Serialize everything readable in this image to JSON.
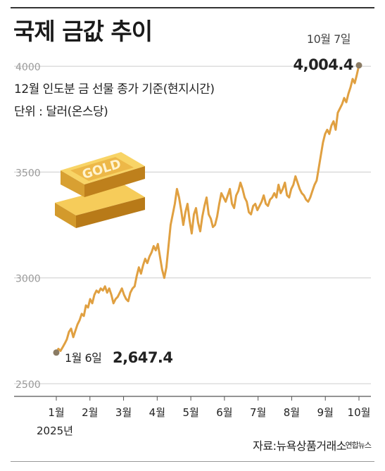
{
  "header": {
    "title": "국제 금값 추이",
    "subtitle": "12월 인도분 금 선물 종가 기준(현지시간)",
    "unit": "단위 : 달러(온스당)"
  },
  "footer": {
    "source": "자료:뉴욕상품거래소",
    "credit": "연합뉴스"
  },
  "colors": {
    "line": "#E0A041",
    "grid": "#cccccc",
    "gold_bar_top": "#F3C64E",
    "gold_bar_side": "#C98A1E",
    "point": "#8a7b64"
  },
  "icons": [
    "gold-bar-icon"
  ],
  "chart_data": {
    "type": "line",
    "title": "국제 금값 추이",
    "xlabel": "",
    "ylabel": "",
    "ylim": [
      2500,
      4130
    ],
    "yticks": [
      2500,
      3000,
      3500,
      4000
    ],
    "ytick_labels": [
      "2500",
      "3000",
      "3500",
      "4000"
    ],
    "xticks": [
      "1월",
      "2월",
      "3월",
      "4월",
      "5월",
      "6월",
      "7월",
      "8월",
      "9월",
      "10월"
    ],
    "year_label": "2025년",
    "grid": true,
    "series": [
      {
        "values": [
          2647,
          2665,
          2655,
          2672,
          2690,
          2710,
          2745,
          2760,
          2720,
          2750,
          2780,
          2800,
          2830,
          2820,
          2870,
          2860,
          2900,
          2880,
          2920,
          2940,
          2930,
          2950,
          2940,
          2960,
          2930,
          2950,
          2920,
          2880,
          2900,
          2910,
          2930,
          2950,
          2920,
          2900,
          2890,
          2930,
          2950,
          2960,
          3010,
          3050,
          3020,
          3060,
          3090,
          3070,
          3100,
          3120,
          3150,
          3130,
          3160,
          3100,
          3040,
          3000,
          3050,
          3150,
          3250,
          3300,
          3350,
          3420,
          3380,
          3320,
          3250,
          3310,
          3350,
          3270,
          3210,
          3300,
          3330,
          3260,
          3220,
          3290,
          3340,
          3380,
          3300,
          3280,
          3240,
          3250,
          3290,
          3350,
          3400,
          3380,
          3360,
          3390,
          3420,
          3350,
          3330,
          3390,
          3410,
          3450,
          3420,
          3380,
          3360,
          3310,
          3300,
          3340,
          3350,
          3320,
          3340,
          3360,
          3390,
          3350,
          3340,
          3370,
          3380,
          3400,
          3380,
          3440,
          3400,
          3420,
          3450,
          3390,
          3380,
          3420,
          3440,
          3480,
          3450,
          3420,
          3400,
          3390,
          3370,
          3360,
          3380,
          3410,
          3440,
          3460,
          3520,
          3580,
          3640,
          3680,
          3700,
          3680,
          3720,
          3740,
          3700,
          3780,
          3800,
          3820,
          3850,
          3830,
          3870,
          3900,
          3940,
          3920,
          3960,
          4004.4
        ],
        "color": "#E0A041"
      }
    ],
    "annotations": [
      {
        "date": "1월 6일",
        "value_text": "2,647.4",
        "value": 2647.4
      },
      {
        "date": "10월 7일",
        "value_text": "4,004.4",
        "value": 4004.4
      }
    ]
  }
}
